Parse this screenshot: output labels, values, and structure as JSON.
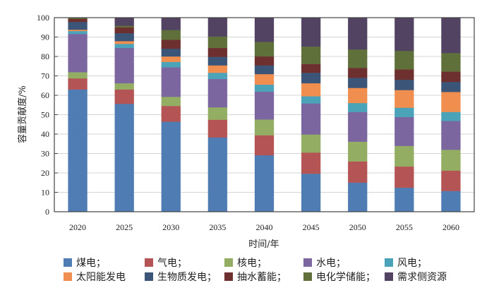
{
  "chart_data": {
    "type": "bar",
    "stacked": true,
    "title": "",
    "xlabel": "时间/年",
    "ylabel": "容量贡献度/%",
    "ylim": [
      0,
      100
    ],
    "yticks": [
      0,
      10,
      20,
      30,
      40,
      50,
      60,
      70,
      80,
      90,
      100
    ],
    "grid": true,
    "legend_position": "bottom",
    "categories": [
      "2020",
      "2025",
      "2030",
      "2035",
      "2040",
      "2045",
      "2050",
      "2055",
      "2060"
    ],
    "series": [
      {
        "name": "煤电；",
        "color": "#4f7db3",
        "values": [
          63.0,
          55.6,
          46.4,
          38.3,
          29.1,
          19.6,
          15.0,
          12.4,
          10.7
        ]
      },
      {
        "name": "气电；",
        "color": "#b55454",
        "values": [
          5.7,
          7.4,
          8.1,
          9.1,
          10.3,
          10.9,
          10.9,
          10.9,
          10.5
        ]
      },
      {
        "name": "核电；",
        "color": "#93ad62",
        "values": [
          3.2,
          3.2,
          4.7,
          6.4,
          8.1,
          9.3,
          10.2,
          10.6,
          10.7
        ]
      },
      {
        "name": "水电；",
        "color": "#7b66a0",
        "values": [
          19.7,
          18.2,
          15.2,
          14.6,
          14.4,
          16.0,
          15.3,
          14.9,
          14.9
        ]
      },
      {
        "name": "风电；",
        "color": "#4aa3b8",
        "values": [
          1.5,
          2.1,
          2.8,
          3.2,
          3.6,
          3.7,
          4.6,
          4.8,
          4.6
        ]
      },
      {
        "name": "太阳能发电",
        "color": "#f08e50",
        "values": [
          0.7,
          1.4,
          2.8,
          3.8,
          5.4,
          6.7,
          7.8,
          9.1,
          10.3
        ]
      },
      {
        "name": "生物质发电；",
        "color": "#3a5577",
        "values": [
          4.0,
          4.1,
          4.0,
          4.4,
          4.5,
          5.4,
          5.2,
          5.3,
          5.2
        ]
      },
      {
        "name": "抽水蓄能；",
        "color": "#6e2f2f",
        "values": [
          1.6,
          3.0,
          4.6,
          4.6,
          4.6,
          4.5,
          5.1,
          5.3,
          5.3
        ]
      },
      {
        "name": "电化学储能；",
        "color": "#5f703a",
        "values": [
          0.5,
          0.8,
          5.0,
          5.9,
          7.5,
          9.0,
          9.5,
          9.6,
          9.6
        ]
      },
      {
        "name": "需求侧资源",
        "color": "#524363",
        "values": [
          0.0,
          4.2,
          6.4,
          9.7,
          12.5,
          14.9,
          16.4,
          17.1,
          18.2
        ]
      }
    ]
  }
}
